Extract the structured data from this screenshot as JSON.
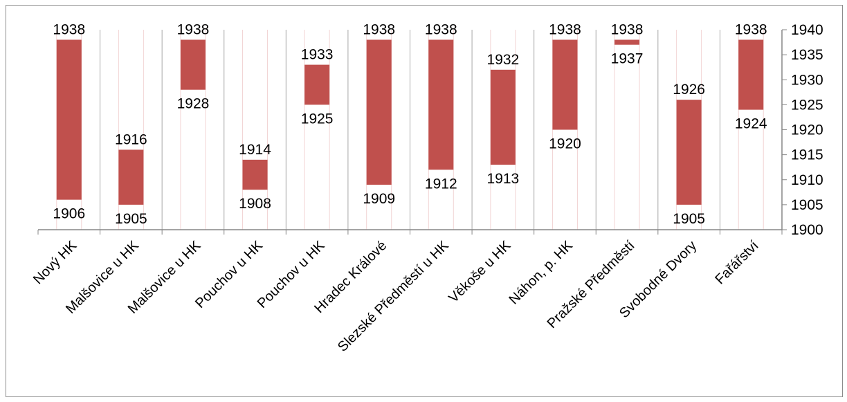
{
  "chart_data": {
    "type": "bar",
    "subtype": "floating-range",
    "categories": [
      "Nový HK",
      "Malšovice u HK",
      "Malšovice u HK",
      "Pouchov u HK",
      "Pouchov u HK",
      "Hradec Králové",
      "Slezské Předměstí u HK",
      "Věkoše u HK",
      "Náhon, p. HK",
      "Pražské Předměstí",
      "Svobodné Dvory",
      "Fařářství"
    ],
    "series": [
      {
        "start": [
          1906,
          1905,
          1928,
          1908,
          1925,
          1909,
          1912,
          1913,
          1920,
          1937,
          1905,
          1924
        ],
        "end": [
          1938,
          1916,
          1938,
          1914,
          1933,
          1938,
          1938,
          1932,
          1938,
          1938,
          1926,
          1938
        ],
        "start_labels": [
          "1906",
          "1905",
          "1928",
          "1908",
          "1925",
          "1909",
          "1912",
          "1913",
          "1920",
          "1937",
          "1905",
          "1924"
        ],
        "end_labels": [
          "1938",
          "1916",
          "1938",
          "1914",
          "1933",
          "1938",
          "1938",
          "1932",
          "1938",
          "1938",
          "1926",
          "1938"
        ]
      }
    ],
    "y_axis": {
      "side": "right",
      "min": 1900,
      "max": 1940,
      "step": 5,
      "tick_labels": [
        "1900",
        "1905",
        "1910",
        "1915",
        "1920",
        "1925",
        "1930",
        "1935",
        "1940"
      ]
    },
    "colors": {
      "bar": "#c0504d",
      "axis": "#868686",
      "guide": "#f2d4d4",
      "divider": "#a6a6a6"
    },
    "legend": "none",
    "title": "",
    "xlabel": "",
    "ylabel": ""
  }
}
